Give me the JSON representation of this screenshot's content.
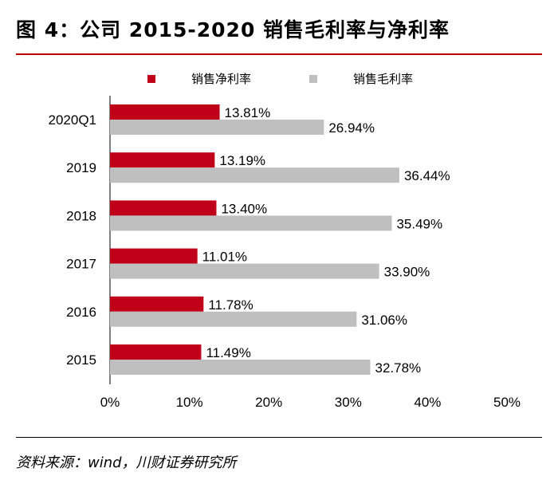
{
  "header": {
    "title": "图 4：公司 2015-2020 销售毛利率与净利率"
  },
  "footer": {
    "source": "资料来源：wind，川财证券研究所"
  },
  "chart_data": {
    "type": "bar",
    "orientation": "horizontal",
    "categories": [
      "2020Q1",
      "2019",
      "2018",
      "2017",
      "2016",
      "2015"
    ],
    "series": [
      {
        "name": "销售净利率",
        "color": "#c00018",
        "values": [
          13.81,
          13.19,
          13.4,
          11.01,
          11.78,
          11.49
        ],
        "labels": [
          "13.81%",
          "13.19%",
          "13.40%",
          "11.01%",
          "11.78%",
          "11.49%"
        ]
      },
      {
        "name": "销售毛利率",
        "color": "#bfbfbf",
        "values": [
          26.94,
          36.44,
          35.49,
          33.9,
          31.06,
          32.78
        ],
        "labels": [
          "26.94%",
          "36.44%",
          "35.49%",
          "33.90%",
          "31.06%",
          "32.78%"
        ]
      }
    ],
    "xlim": [
      0,
      50
    ],
    "xticks": [
      "0%",
      "10%",
      "20%",
      "30%",
      "40%",
      "50%"
    ],
    "legend_position": "top",
    "grid": false
  }
}
